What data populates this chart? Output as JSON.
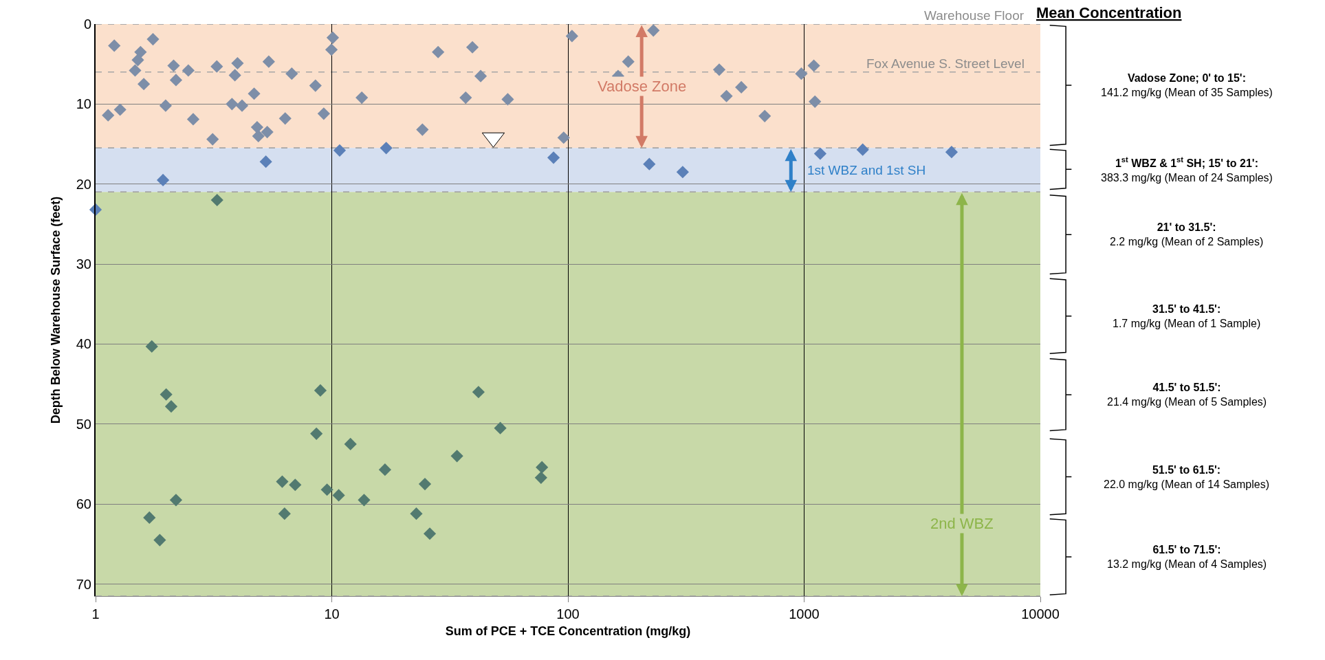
{
  "chart_data": {
    "type": "scatter",
    "xlabel": "Sum of PCE + TCE Concentration (mg/kg)",
    "ylabel": "Depth Below Warehouse Surface (feet)",
    "log": "x",
    "xlim": [
      1,
      10000
    ],
    "xticks": [
      1,
      10,
      100,
      1000,
      10000
    ],
    "ylim": [
      71.5,
      0
    ],
    "yticks": [
      0,
      10,
      20,
      30,
      40,
      50,
      60,
      70
    ],
    "grid": true,
    "marker": "diamond",
    "series": [
      {
        "color": "#7d8ea8",
        "x": [
          1.2,
          1.75,
          1.55,
          1.51,
          1.47,
          1.6,
          1.13,
          1.27,
          1.98,
          2.14,
          2.19,
          2.47,
          2.59,
          3.13,
          3.26,
          3.89,
          3.99,
          3.78,
          4.17,
          4.69,
          4.83,
          4.89,
          5.33,
          5.41,
          6.77,
          6.35,
          8.53,
          9.25,
          10.1,
          9.97,
          13.4,
          24.2,
          28.2,
          36.9,
          39.4,
          42.7,
          55.6,
          95.9,
          104,
          230,
          180,
          163,
          437,
          469,
          542,
          681,
          973,
          1099,
          1111
        ],
        "values": [
          2.7,
          1.9,
          3.5,
          4.5,
          5.8,
          7.5,
          11.4,
          10.7,
          10.2,
          5.2,
          7.0,
          5.8,
          11.9,
          14.4,
          5.3,
          6.4,
          4.9,
          10.0,
          10.2,
          8.7,
          12.9,
          14.0,
          13.5,
          4.7,
          6.2,
          11.8,
          7.7,
          11.2,
          1.7,
          3.2,
          9.2,
          13.2,
          3.5,
          9.2,
          2.9,
          6.5,
          9.4,
          14.2,
          1.5,
          0.8,
          4.7,
          6.5,
          5.7,
          9.0,
          7.9,
          11.5,
          6.2,
          5.2,
          9.7
        ]
      },
      {
        "color": "#5b80b8",
        "x": [
          10.8,
          17.0,
          5.26,
          1.93,
          86.9,
          221,
          306,
          1170,
          1770,
          4210,
          1.0
        ],
        "values": [
          15.8,
          15.5,
          17.2,
          19.5,
          16.7,
          17.5,
          18.5,
          16.2,
          15.7,
          16.0,
          23.2
        ]
      },
      {
        "color": "#527a70",
        "x": [
          3.27,
          1.73,
          1.99,
          2.09,
          2.19,
          1.69,
          1.87,
          8.95,
          8.61,
          6.17,
          7.0,
          6.31,
          9.55,
          10.7,
          12.0,
          13.7,
          16.8,
          22.8,
          24.8,
          26.0,
          33.9,
          41.8,
          51.7,
          77.6,
          76.9
        ],
        "values": [
          22.0,
          40.3,
          46.3,
          47.8,
          59.5,
          61.7,
          64.5,
          45.8,
          51.2,
          57.2,
          57.6,
          61.2,
          58.2,
          58.9,
          52.5,
          59.5,
          55.7,
          61.2,
          57.5,
          63.7,
          54.0,
          46.0,
          50.5,
          55.4,
          56.7
        ]
      },
      {
        "color": "#ffffff",
        "marker": "triangle",
        "x": [
          48.3
        ],
        "values": [
          14.2
        ]
      }
    ],
    "bands": [
      {
        "axis": "y",
        "from": 0,
        "to": 15.5,
        "label": "Vadose Zone",
        "color": "#fbe0cc"
      },
      {
        "axis": "y",
        "from": 15.5,
        "to": 21,
        "label": "1st WBZ and 1st SH",
        "color": "#d5dff0"
      },
      {
        "axis": "y",
        "from": 21,
        "to": 71.5,
        "label": "2nd WBZ",
        "color": "#c8d9a8"
      }
    ],
    "ref_lines": [
      {
        "axis": "y",
        "value": 0,
        "label": "Warehouse Floor",
        "color": "#a6a6a6",
        "line_style": "dashed"
      },
      {
        "axis": "y",
        "value": 6,
        "label": "Fox Avenue S. Street Level",
        "color": "#a6a6a6",
        "line_style": "dashed"
      }
    ],
    "annotations": [
      "Mean Concentration",
      "Vadose Zone; 0' to 15':\n141.2 mg/kg (Mean of 35 Samples)",
      "1$^{st}$ WBZ & 1$^{st}$ SH; 15' to 21':\n383.3 mg/kg (Mean of 24 Samples)",
      "21' to 31.5':\n2.2 mg/kg (Mean of 2 Samples)",
      "31.5' to 41.5':\n1.7 mg/kg (Mean of 1 Sample)",
      "41.5' to 51.5':\n21.4 mg/kg (Mean of 5 Samples)",
      "51.5' to 61.5':\n22.0 mg/kg (Mean of 14 Samples)",
      "61.5' to 71.5':\n13.2 mg/kg (Mean of 4 Samples)"
    ]
  }
}
